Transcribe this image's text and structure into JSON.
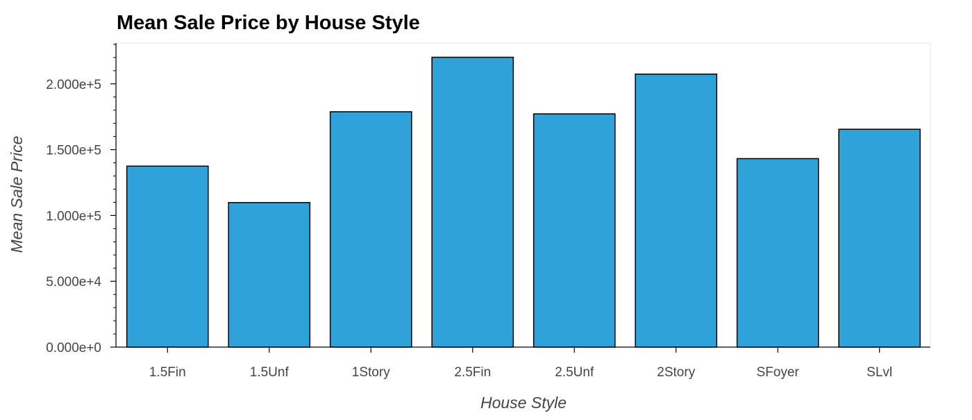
{
  "chart_data": {
    "type": "bar",
    "title": "Mean Sale Price by House Style",
    "xlabel": "House Style",
    "ylabel": "Mean Sale Price",
    "categories": [
      "1.5Fin",
      "1.5Unf",
      "1Story",
      "2.5Fin",
      "2.5Unf",
      "2Story",
      "SFoyer",
      "SLvl"
    ],
    "values": [
      137500,
      109800,
      178800,
      220200,
      177200,
      207400,
      143200,
      165500
    ],
    "ylim": [
      0,
      231000
    ],
    "yticks": [
      0,
      50000,
      100000,
      150000,
      200000
    ],
    "ytick_labels": [
      "0.000e+0",
      "5.000e+4",
      "1.000e+5",
      "1.500e+5",
      "2.000e+5"
    ],
    "grid": false,
    "bar_color": "#30a2da",
    "bar_edge_color": "#000000"
  }
}
